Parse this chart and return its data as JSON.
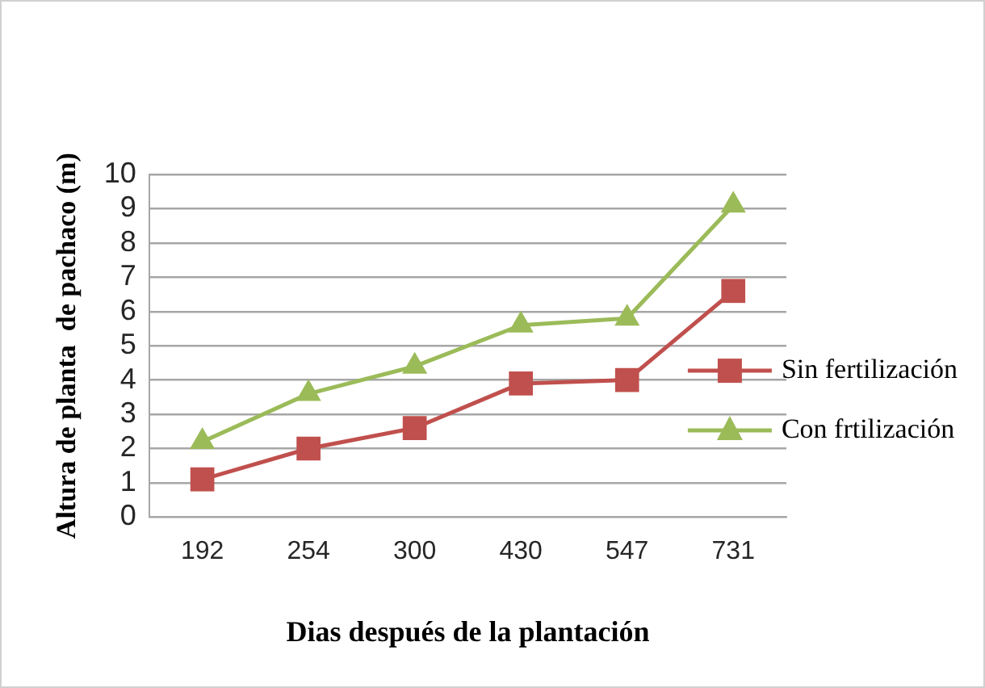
{
  "chart_data": {
    "type": "line",
    "categories": [
      "192",
      "254",
      "300",
      "430",
      "547",
      "731"
    ],
    "series": [
      {
        "name": "Sin fertilización",
        "color": "#c0504d",
        "marker": "square",
        "values": [
          1.1,
          2.0,
          2.6,
          3.9,
          4.0,
          6.6
        ]
      },
      {
        "name": "Con frtilización",
        "color": "#9bbb59",
        "marker": "triangle",
        "values": [
          2.2,
          3.6,
          4.4,
          5.6,
          5.8,
          9.1
        ]
      }
    ],
    "xlabel": "Dias después de la plantación",
    "ylabel": "Altura de planta  de pachaco (m)",
    "ylim": [
      0,
      10
    ],
    "yticks": [
      0,
      1,
      2,
      3,
      4,
      5,
      6,
      7,
      8,
      9,
      10
    ],
    "grid": "y",
    "legend": "right",
    "line_style": "solid"
  }
}
